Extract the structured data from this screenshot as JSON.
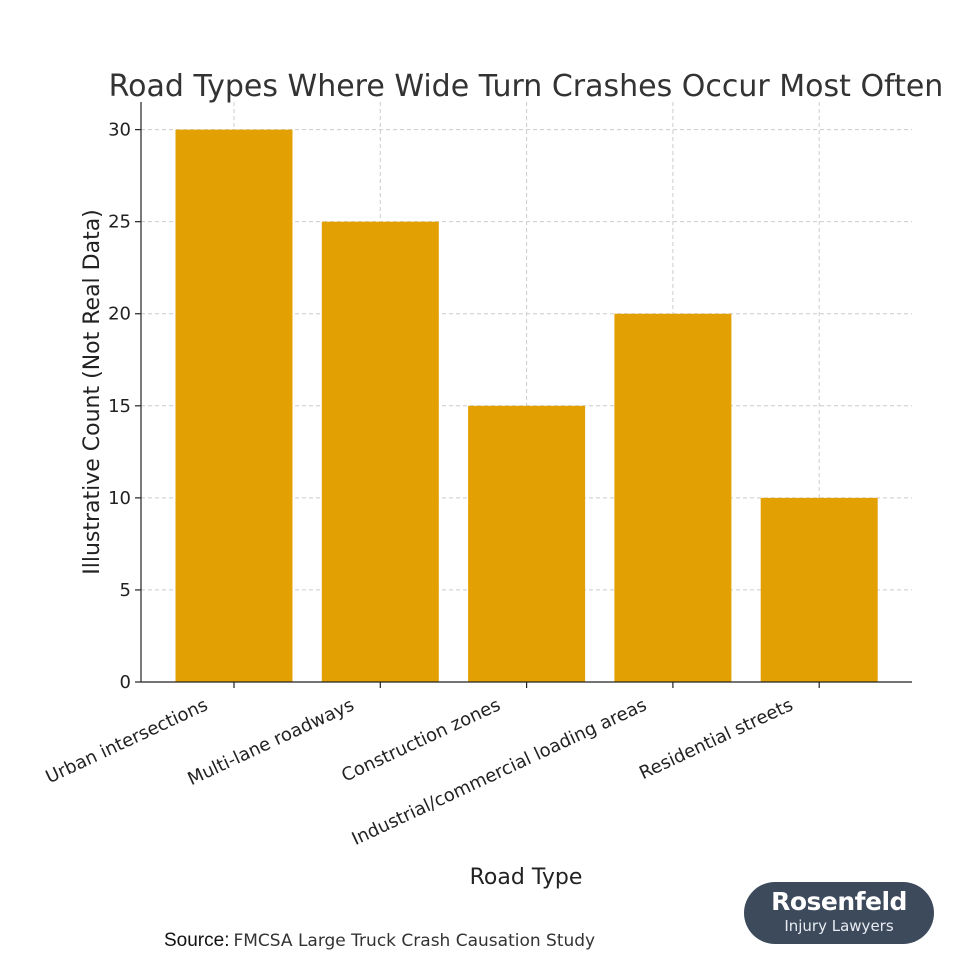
{
  "chart_data": {
    "type": "bar",
    "title": "Road Types Where Wide Turn Crashes Occur Most Often",
    "xlabel": "Road Type",
    "ylabel": "Illustrative Count (Not Real Data)",
    "categories": [
      "Urban intersections",
      "Multi-lane roadways",
      "Construction zones",
      "Industrial/commercial loading areas",
      "Residential streets"
    ],
    "values": [
      30,
      25,
      15,
      20,
      10
    ],
    "ylim": [
      0,
      31.5
    ],
    "yticks": [
      0,
      5,
      10,
      15,
      20,
      25,
      30
    ],
    "grid": true,
    "bar_color": "#e3a003"
  },
  "source": {
    "label": "Source:",
    "text": "FMCSA Large Truck Crash Causation Study"
  },
  "logo": {
    "name": "Rosenfeld",
    "tagline": "Injury Lawyers",
    "background": "#3d4a5c"
  }
}
